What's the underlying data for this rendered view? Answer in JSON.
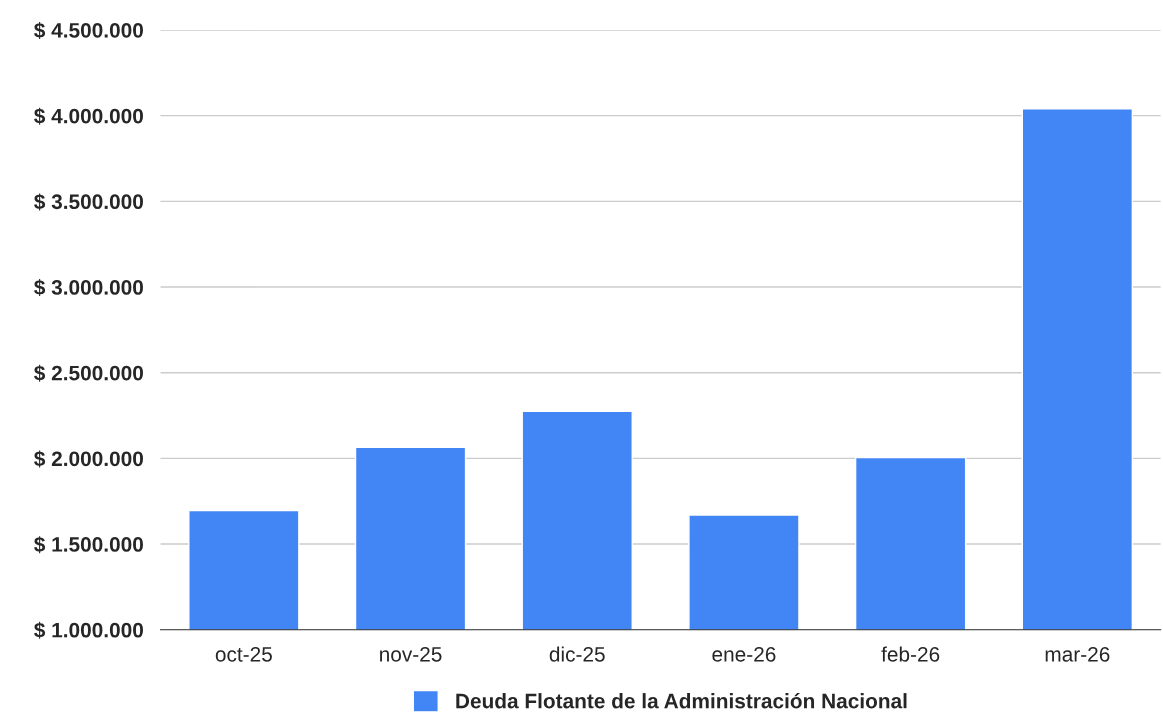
{
  "chart_data": {
    "type": "bar",
    "categories": [
      "oct-25",
      "nov-25",
      "dic-25",
      "ene-26",
      "feb-26",
      "mar-26"
    ],
    "series": [
      {
        "name": "Deuda Flotante de la Administración Nacional",
        "color": "#4285f4",
        "values": [
          1695000,
          2065000,
          2275000,
          1670000,
          2005000,
          4040000
        ]
      }
    ],
    "ylim": [
      1000000,
      4500000
    ],
    "yticks": [
      {
        "value": 1000000,
        "label": "$ 1.000.000"
      },
      {
        "value": 1500000,
        "label": "$ 1.500.000"
      },
      {
        "value": 2000000,
        "label": "$ 2.000.000"
      },
      {
        "value": 2500000,
        "label": "$ 2.500.000"
      },
      {
        "value": 3000000,
        "label": "$ 3.000.000"
      },
      {
        "value": 3500000,
        "label": "$ 3.500.000"
      },
      {
        "value": 4000000,
        "label": "$ 4.000.000"
      },
      {
        "value": 4500000,
        "label": "$ 4.500.000"
      }
    ],
    "grid": "y",
    "legend": "bottom"
  }
}
